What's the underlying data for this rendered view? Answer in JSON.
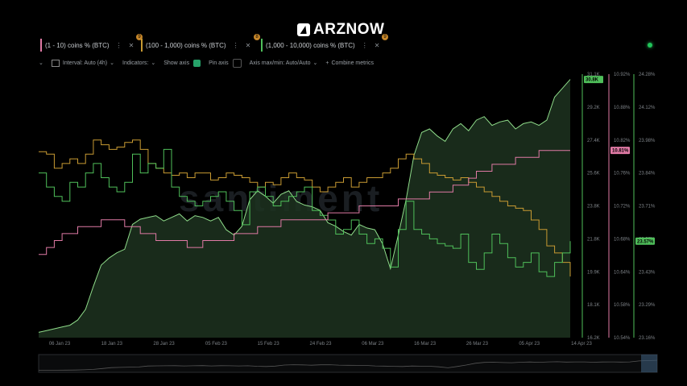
{
  "brand": {
    "name": "ARZNOW",
    "watermark": "santiment"
  },
  "tabs": [
    {
      "label": "(1 - 10) coins % (BTC)",
      "color": "#e07aa5",
      "badge": ""
    },
    {
      "label": "(100 - 1,000) coins % (BTC)",
      "color": "#c89a32",
      "badge": "8"
    },
    {
      "label": "(1,000 - 10,000) coins % (BTC)",
      "color": "#4fbf5a",
      "badge": "9"
    }
  ],
  "first_badge": "9",
  "toolbar": {
    "interval": "Interval: Auto (4h)",
    "indicators": "Indicators:",
    "show_axis": "Show axis",
    "pin_axis": "Pin axis",
    "axis_maxmin": "Axis max/min: Auto/Auto",
    "combine": "Combine metrics"
  },
  "chart_data": {
    "type": "line",
    "x_ticks": [
      "06 Jan 23",
      "18 Jan 23",
      "28 Jan 23",
      "05 Feb 23",
      "15 Feb 23",
      "24 Feb 23",
      "06 Mar 23",
      "16 Mar 23",
      "26 Mar 23",
      "05 Apr 23",
      "14 Apr 23"
    ],
    "axes": [
      {
        "name": "price",
        "ticks": [
          "31.1K",
          "29.2K",
          "27.4K",
          "25.6K",
          "23.8K",
          "21.8K",
          "19.9K",
          "18.1K",
          "16.2K"
        ],
        "current": "30.8K",
        "color": "#4fbf5a"
      },
      {
        "name": "pink",
        "ticks": [
          "10.92%",
          "10.88%",
          "10.82%",
          "10.76%",
          "10.72%",
          "10.68%",
          "10.64%",
          "10.58%",
          "10.54%"
        ],
        "current": "10.81%",
        "color": "#e07aa5"
      },
      {
        "name": "green",
        "ticks": [
          "24.28%",
          "24.12%",
          "23.98%",
          "23.84%",
          "23.71%",
          "23.57%",
          "23.43%",
          "23.29%",
          "23.16%"
        ],
        "current": "23.57%",
        "color": "#4fbf5a"
      }
    ],
    "price_series": {
      "name": "BTC price",
      "values": [
        16.5,
        16.6,
        16.7,
        16.8,
        16.9,
        17.2,
        17.8,
        19.1,
        20.3,
        20.7,
        21.0,
        21.2,
        22.6,
        22.9,
        23.0,
        23.1,
        22.8,
        23.0,
        23.2,
        22.8,
        23.1,
        23.0,
        22.8,
        23.0,
        22.3,
        22.0,
        22.5,
        24.0,
        24.5,
        24.2,
        23.8,
        24.3,
        24.5,
        23.9,
        23.7,
        23.6,
        23.4,
        22.7,
        22.5,
        22.2,
        22.0,
        22.6,
        22.4,
        22.3,
        21.5,
        20.1,
        22.0,
        24.0,
        26.5,
        27.8,
        28.0,
        27.6,
        27.3,
        28.0,
        28.3,
        27.9,
        28.5,
        28.7,
        28.2,
        28.4,
        28.5,
        28.0,
        28.3,
        28.4,
        28.2,
        28.5,
        29.8,
        30.3,
        30.8
      ]
    },
    "pink_series": {
      "name": "(1 - 10) coins % (BTC)",
      "values": [
        10.66,
        10.67,
        10.68,
        10.69,
        10.69,
        10.7,
        10.7,
        10.7,
        10.71,
        10.71,
        10.71,
        10.7,
        10.7,
        10.69,
        10.69,
        10.68,
        10.68,
        10.68,
        10.68,
        10.67,
        10.67,
        10.68,
        10.68,
        10.68,
        10.68,
        10.69,
        10.69,
        10.69,
        10.7,
        10.7,
        10.7,
        10.71,
        10.71,
        10.71,
        10.71,
        10.71,
        10.71,
        10.72,
        10.72,
        10.72,
        10.72,
        10.73,
        10.73,
        10.73,
        10.73,
        10.73,
        10.74,
        10.74,
        10.74,
        10.74,
        10.75,
        10.75,
        10.75,
        10.76,
        10.76,
        10.77,
        10.78,
        10.78,
        10.79,
        10.79,
        10.79,
        10.8,
        10.8,
        10.8,
        10.81,
        10.81,
        10.81,
        10.81,
        10.81
      ]
    },
    "orange_series": {
      "name": "(100 - 1,000) coins % (BTC)",
      "values": [
        23.95,
        23.94,
        23.88,
        23.9,
        23.92,
        23.9,
        23.94,
        24.0,
        23.98,
        23.96,
        23.97,
        23.99,
        24.0,
        23.96,
        23.9,
        23.88,
        23.86,
        23.85,
        23.86,
        23.84,
        23.86,
        23.86,
        23.83,
        23.84,
        23.86,
        23.85,
        23.84,
        23.82,
        23.8,
        23.82,
        23.81,
        23.84,
        23.86,
        23.84,
        23.83,
        23.8,
        23.78,
        23.8,
        23.82,
        23.84,
        23.8,
        23.82,
        23.84,
        23.84,
        23.86,
        23.88,
        23.92,
        23.94,
        23.92,
        23.9,
        23.86,
        23.85,
        23.84,
        23.83,
        23.84,
        23.82,
        23.8,
        23.78,
        23.76,
        23.74,
        23.72,
        23.71,
        23.7,
        23.66,
        23.62,
        23.55,
        23.52,
        23.48,
        23.42
      ]
    },
    "green_series": {
      "name": "(1,000 - 10,000) coins % (BTC)",
      "values": [
        23.86,
        23.8,
        23.76,
        23.74,
        23.82,
        23.8,
        23.86,
        23.9,
        23.84,
        23.8,
        23.78,
        23.82,
        23.94,
        23.86,
        23.9,
        23.88,
        23.96,
        23.8,
        23.76,
        23.74,
        23.72,
        23.74,
        23.76,
        23.78,
        23.74,
        23.7,
        23.64,
        23.78,
        23.8,
        23.76,
        23.72,
        23.74,
        23.76,
        23.78,
        23.8,
        23.7,
        23.68,
        23.66,
        23.6,
        23.62,
        23.66,
        23.6,
        23.56,
        23.58,
        23.54,
        23.46,
        23.62,
        23.74,
        23.62,
        23.6,
        23.58,
        23.56,
        23.55,
        23.54,
        23.6,
        23.48,
        23.45,
        23.52,
        23.6,
        23.56,
        23.5,
        23.46,
        23.48,
        23.52,
        23.44,
        23.42,
        23.48,
        23.52,
        23.57
      ]
    }
  }
}
